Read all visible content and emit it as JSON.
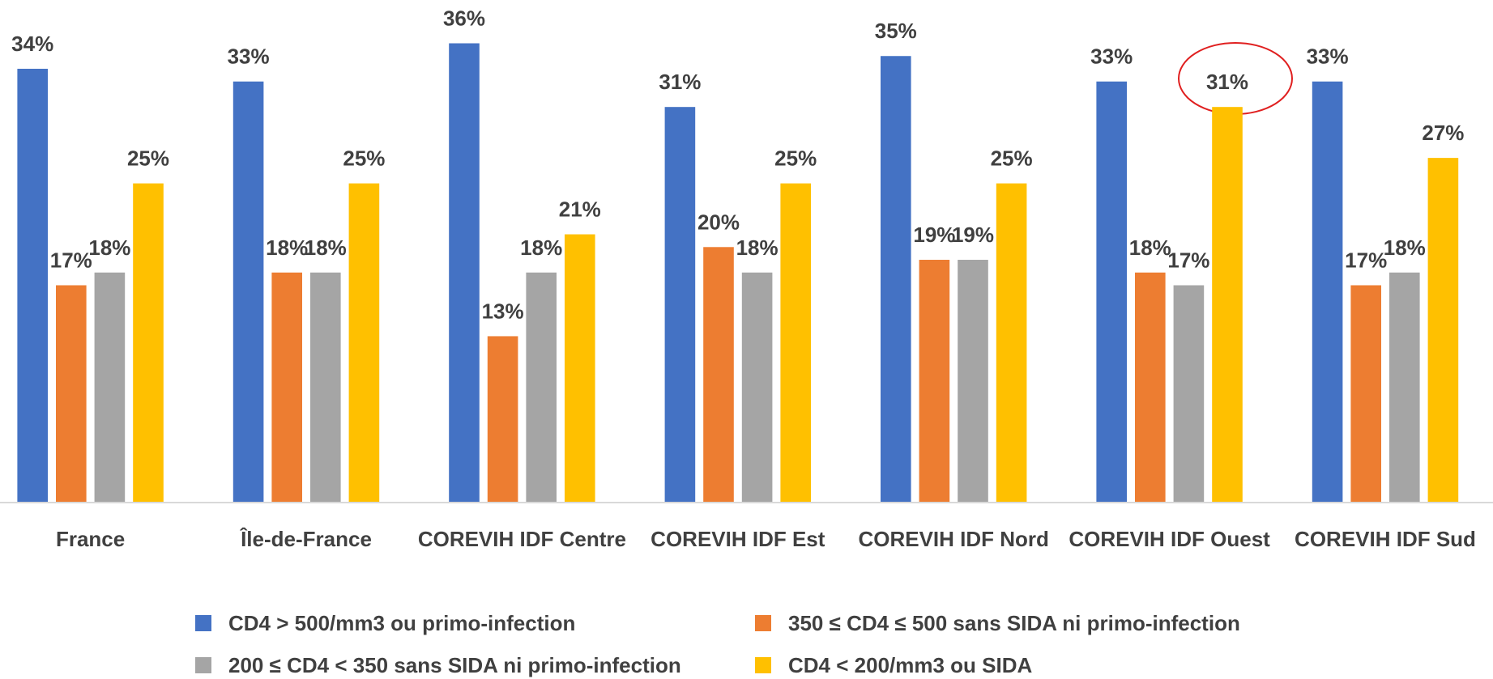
{
  "chart_data": {
    "type": "bar",
    "categories": [
      "France",
      "Île-de-France",
      "COREVIH IDF Centre",
      "COREVIH IDF Est",
      "COREVIH IDF Nord",
      "COREVIH IDF Ouest",
      "COREVIH IDF Sud"
    ],
    "series": [
      {
        "name": "CD4 > 500/mm3 ou primo-infection",
        "color": "#4472c4",
        "values": [
          34,
          33,
          36,
          31,
          35,
          33,
          33
        ],
        "value_labels": [
          "34%",
          "33%",
          "36%",
          "31%",
          "35%",
          "33%",
          "33%"
        ]
      },
      {
        "name": "350 ≤ CD4 ≤ 500 sans SIDA ni primo-infection",
        "color": "#ed7d31",
        "values": [
          17,
          18,
          13,
          20,
          19,
          18,
          17
        ],
        "value_labels": [
          "17%",
          "18%",
          "13%",
          "20%",
          "19%",
          "18%",
          "17%"
        ]
      },
      {
        "name": "200 ≤ CD4 < 350 sans SIDA ni primo-infection",
        "color": "#a5a5a5",
        "values": [
          18,
          18,
          18,
          18,
          19,
          17,
          18
        ],
        "value_labels": [
          "18%",
          "18%",
          "18%",
          "18%",
          "19%",
          "17%",
          "18%"
        ]
      },
      {
        "name": "CD4 < 200/mm3 ou SIDA",
        "color": "#ffc000",
        "values": [
          25,
          25,
          21,
          25,
          25,
          31,
          27
        ],
        "value_labels": [
          "25%",
          "25%",
          "21%",
          "25%",
          "25%",
          "31%",
          "27%"
        ]
      }
    ],
    "ylim": [
      0,
      39.4
    ],
    "legend": "bottom"
  }
}
